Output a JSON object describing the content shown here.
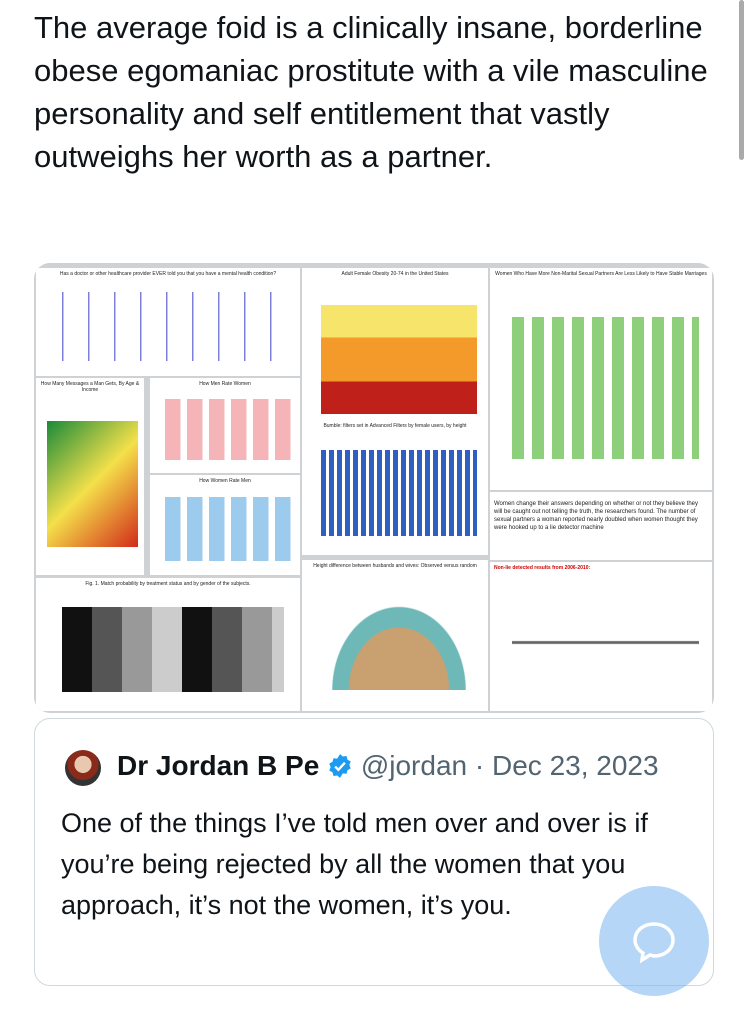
{
  "post": {
    "text": "The average foid is a clinically insane, borderline obese egomaniac prostitute with a vile masculine personality and self entitlement that vastly outweighs her worth as a partner."
  },
  "media": {
    "panels": [
      {
        "title": "Has a doctor or other healthcare provider EVER told you that you have a mental health condition?"
      },
      {
        "title": "Adult Female Obesity 20-74 in the United States"
      },
      {
        "title": "Women Who Have More Non-Marital Sexual Partners Are Less Likely to Have Stable Marriages"
      },
      {
        "title": "How Many Messages a Man Gets, By Age & Income"
      },
      {
        "title": "How Men Rate Women"
      },
      {
        "title": "How Women Rate Men"
      },
      {
        "title": "Bumble: filters set in Advanced Filters by female users, by height"
      },
      {
        "title": "Women change their answers depending on whether or not they believe they will be caught out not telling the truth, the researchers found. The number of sexual partners a woman reported nearly doubled when women thought they were hooked up to a lie detector machine"
      },
      {
        "title": "Fig. 1. Match probability by treatment status and by gender of the subjects."
      },
      {
        "title": "Height difference between husbands and wives: Observed versus random"
      },
      {
        "title": "Non-lie detected results from 2006-2010:"
      }
    ]
  },
  "quote": {
    "author": "Dr Jordan B Pe",
    "handle": "@jordan",
    "separator": "·",
    "date": "Dec 23, 2023",
    "text": "One of the things I’ve told men over and over is if you’re being rejected by all the women that you approach, it’s not the women, it’s you."
  }
}
